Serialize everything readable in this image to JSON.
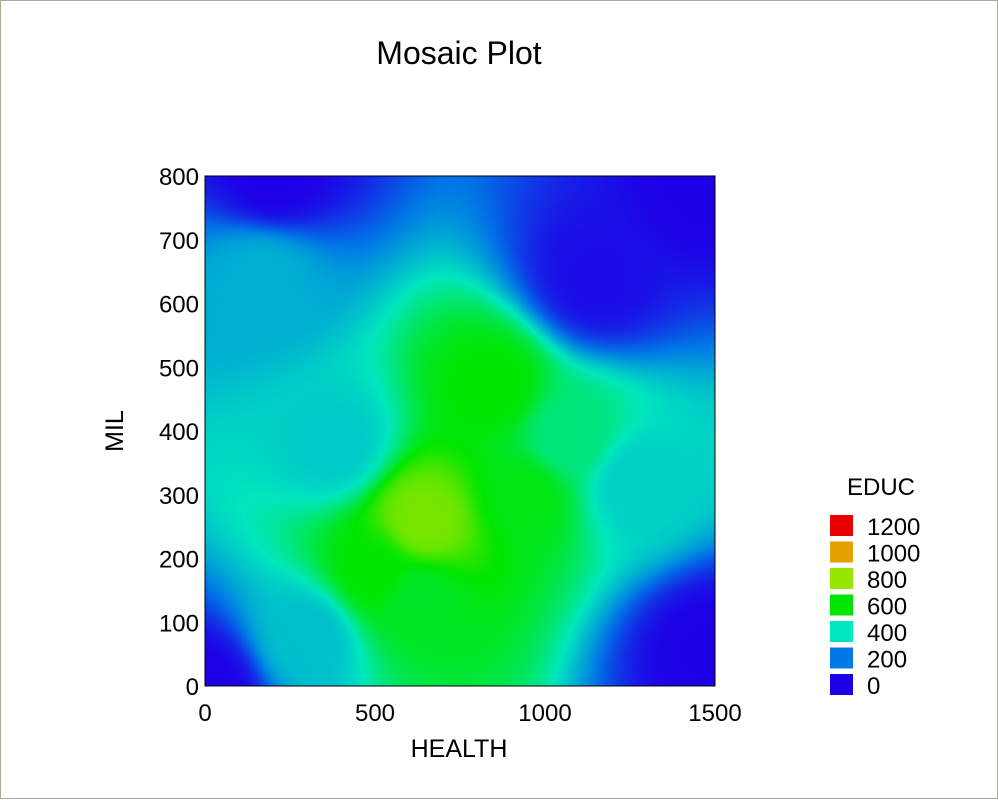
{
  "chart_data": {
    "type": "heatmap",
    "title": "Mosaic Plot",
    "xlabel": "HEALTH",
    "ylabel": "MIL",
    "xlim": [
      0,
      1500
    ],
    "ylim": [
      0,
      800
    ],
    "x_ticks": [
      0,
      500,
      1000,
      1500
    ],
    "y_ticks": [
      0,
      100,
      200,
      300,
      400,
      500,
      600,
      700,
      800
    ],
    "colorbar": {
      "title": "EDUC",
      "levels": [
        {
          "label": "1200",
          "value": 1200,
          "color": "#e60000"
        },
        {
          "label": "1000",
          "value": 1000,
          "color": "#e6a000"
        },
        {
          "label": "800",
          "value": 800,
          "color": "#96e600"
        },
        {
          "label": "600",
          "value": 600,
          "color": "#00e600"
        },
        {
          "label": "400",
          "value": 400,
          "color": "#00e6be"
        },
        {
          "label": "200",
          "value": 200,
          "color": "#0078e6"
        },
        {
          "label": "0",
          "value": 0,
          "color": "#1e00e6"
        }
      ]
    },
    "hotspots": [
      {
        "x": 500,
        "y": 180,
        "z": 600
      },
      {
        "x": 640,
        "y": 260,
        "z": 760
      },
      {
        "x": 620,
        "y": 140,
        "z": 560
      },
      {
        "x": 840,
        "y": 470,
        "z": 600
      },
      {
        "x": 940,
        "y": 300,
        "z": 580
      },
      {
        "x": 1070,
        "y": 390,
        "z": 470
      },
      {
        "x": 1260,
        "y": 320,
        "z": 360
      },
      {
        "x": 160,
        "y": 640,
        "z": 300
      },
      {
        "x": 380,
        "y": 380,
        "z": 350
      },
      {
        "x": 300,
        "y": 80,
        "z": 330
      },
      {
        "x": 0,
        "y": 0,
        "z": 0
      },
      {
        "x": 1450,
        "y": 780,
        "z": 0
      },
      {
        "x": 1480,
        "y": 60,
        "z": 0
      },
      {
        "x": 200,
        "y": 800,
        "z": 0
      },
      {
        "x": 1150,
        "y": 640,
        "z": 20
      }
    ]
  }
}
